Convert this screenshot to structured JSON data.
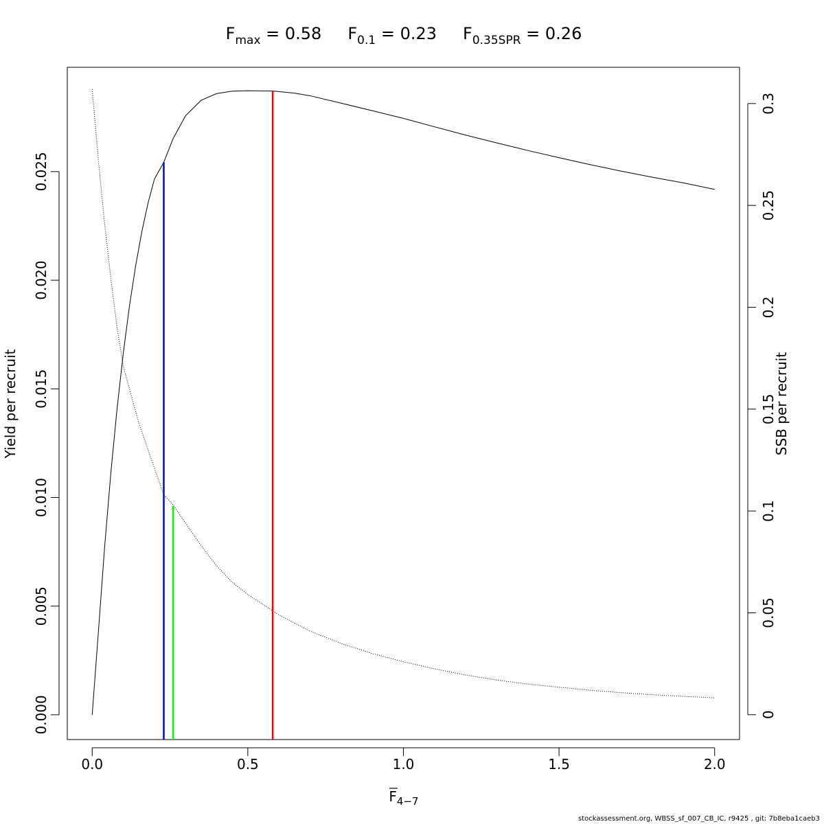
{
  "chart_data": {
    "type": "line",
    "title_parts": [
      {
        "symbol": "F",
        "subscript": "max",
        "value": "0.58"
      },
      {
        "symbol": "F",
        "subscript": "0.1",
        "value": "0.23"
      },
      {
        "symbol": "F",
        "subscript": "0.35SPR",
        "value": "0.26"
      }
    ],
    "xlabel": {
      "symbol": "F",
      "subscript": "4−7"
    },
    "ylabel_left": "Yield per recruit",
    "ylabel_right": "SSB per recruit",
    "xlim": [
      -0.08,
      2.08
    ],
    "ylim_left": [
      -0.00114,
      0.0298
    ],
    "ylim_right": [
      -0.0122,
      0.3178
    ],
    "x_ticks": [
      0,
      0.5,
      1.0,
      1.5,
      2.0
    ],
    "x_tick_labels": [
      "0.0",
      "0.5",
      "1.0",
      "1.5",
      "2.0"
    ],
    "y_ticks_left": [
      0,
      0.005,
      0.01,
      0.015,
      0.02,
      0.025
    ],
    "y_tick_labels_left": [
      "0.000",
      "0.005",
      "0.010",
      "0.015",
      "0.020",
      "0.025"
    ],
    "y_ticks_right": [
      0,
      0.05,
      0.1,
      0.15,
      0.2,
      0.25,
      0.3
    ],
    "y_tick_labels_right": [
      "0",
      "0.05",
      "0.1",
      "0.15",
      "0.2",
      "0.25",
      "0.3"
    ],
    "grid": false,
    "series": [
      {
        "axis": "left",
        "style": "solid",
        "color": "#000000",
        "x": [
          0,
          0.02,
          0.04,
          0.06,
          0.08,
          0.1,
          0.12,
          0.14,
          0.16,
          0.18,
          0.2,
          0.23,
          0.26,
          0.3,
          0.35,
          0.4,
          0.45,
          0.5,
          0.58,
          0.65,
          0.7,
          0.8,
          0.9,
          1.0,
          1.1,
          1.2,
          1.3,
          1.4,
          1.5,
          1.6,
          1.7,
          1.8,
          1.9,
          2.0
        ],
        "values": [
          0,
          0.00383,
          0.00773,
          0.01114,
          0.0141,
          0.01665,
          0.01884,
          0.0207,
          0.02227,
          0.02358,
          0.02466,
          0.02543,
          0.02652,
          0.02757,
          0.02828,
          0.02859,
          0.0287,
          0.02872,
          0.02871,
          0.02861,
          0.02849,
          0.02815,
          0.0278,
          0.02745,
          0.02706,
          0.02668,
          0.02632,
          0.02597,
          0.02564,
          0.02532,
          0.02502,
          0.02474,
          0.02448,
          0.02418
        ]
      },
      {
        "axis": "right",
        "style": "dotted",
        "color": "#000000",
        "x": [
          0,
          0.02,
          0.04,
          0.06,
          0.08,
          0.1,
          0.15,
          0.2,
          0.23,
          0.26,
          0.3,
          0.35,
          0.4,
          0.45,
          0.5,
          0.58,
          0.6,
          0.7,
          0.8,
          0.9,
          1.0,
          1.1,
          1.2,
          1.3,
          1.4,
          1.5,
          1.6,
          1.7,
          1.8,
          1.9,
          2.0
        ],
        "values": [
          0.307,
          0.272,
          0.241,
          0.214,
          0.19,
          0.171,
          0.143,
          0.121,
          0.108,
          0.103,
          0.094,
          0.083,
          0.073,
          0.065,
          0.059,
          0.051,
          0.049,
          0.041,
          0.035,
          0.03,
          0.026,
          0.0225,
          0.0195,
          0.017,
          0.015,
          0.0135,
          0.012,
          0.0108,
          0.0098,
          0.009,
          0.0083
        ]
      }
    ],
    "reference_lines": [
      {
        "x": 0.23,
        "y_top": 0.02543,
        "axis": "left",
        "color": "#0000ff"
      },
      {
        "x": 0.26,
        "y_top": 0.1025,
        "axis": "right",
        "color": "#00ff00"
      },
      {
        "x": 0.58,
        "y_top": 0.02871,
        "axis": "left",
        "color": "#ff0000"
      }
    ]
  },
  "footer": "stockassessment.org, WBSS_sf_007_CB_IC, r9425 , git: 7b8eba1caeb3"
}
